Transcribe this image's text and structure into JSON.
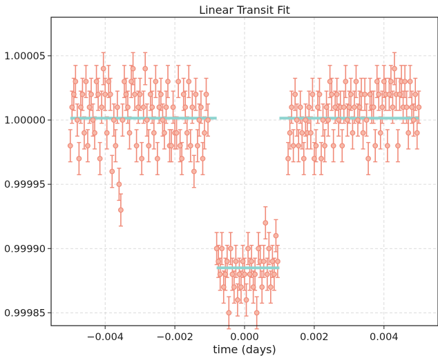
{
  "chart_data": {
    "type": "scatter",
    "title": "Linear Transit Fit",
    "xlabel": "time (days)",
    "ylabel": "",
    "xlim": [
      -0.00555,
      0.00555
    ],
    "ylim": [
      0.99984,
      1.00008
    ],
    "x_ticks": [
      -0.004,
      -0.002,
      0.0,
      0.002,
      0.004
    ],
    "x_tick_labels": [
      "−0.004",
      "−0.002",
      "0.000",
      "0.002",
      "0.004"
    ],
    "y_ticks": [
      0.99985,
      0.9999,
      0.99995,
      1.0,
      1.00005
    ],
    "y_tick_labels": [
      "0.99985",
      "0.99990",
      "0.99995",
      "1.00000",
      "1.00005"
    ],
    "grid": true,
    "colors": {
      "data": "#f08a78",
      "marker_fill": "#f7b8a8",
      "model": "#8ed4cf"
    },
    "series": [
      {
        "kind": "errorbar",
        "yerr": 1.25e-05,
        "points": [
          [
            -0.005,
            0.99998
          ],
          [
            -0.00495,
            1.00001
          ],
          [
            -0.0049,
            1.00002
          ],
          [
            -0.00485,
            1.00003
          ],
          [
            -0.0048,
            1.0
          ],
          [
            -0.00475,
            0.99997
          ],
          [
            -0.0047,
            1.00001
          ],
          [
            -0.00465,
            1.00002
          ],
          [
            -0.0046,
            0.99999
          ],
          [
            -0.00455,
            1.00003
          ],
          [
            -0.0045,
            0.99998
          ],
          [
            -0.00445,
            1.00001
          ],
          [
            -0.0044,
            1.00002
          ],
          [
            -0.00435,
            1.0
          ],
          [
            -0.0043,
            0.99999
          ],
          [
            -0.00425,
            1.00003
          ],
          [
            -0.0042,
            1.00002
          ],
          [
            -0.00415,
            0.99997
          ],
          [
            -0.0041,
            1.00001
          ],
          [
            -0.00405,
            1.00004
          ],
          [
            -0.004,
            1.00002
          ],
          [
            -0.00395,
            0.99999
          ],
          [
            -0.0039,
            1.00003
          ],
          [
            -0.00385,
            1.00002
          ],
          [
            -0.0038,
            0.99996
          ],
          [
            -0.00375,
            1.0
          ],
          [
            -0.0037,
            0.99998
          ],
          [
            -0.00365,
            1.00001
          ],
          [
            -0.0036,
            0.99995
          ],
          [
            -0.00355,
            0.99993
          ],
          [
            -0.0035,
            1.0
          ],
          [
            -0.00345,
            1.00003
          ],
          [
            -0.0034,
            1.00002
          ],
          [
            -0.00335,
            1.00001
          ],
          [
            -0.0033,
            0.99999
          ],
          [
            -0.00325,
            1.00003
          ],
          [
            -0.0032,
            1.00004
          ],
          [
            -0.00315,
            1.00002
          ],
          [
            -0.0031,
            0.99998
          ],
          [
            -0.00305,
            1.00001
          ],
          [
            -0.003,
            1.00002
          ],
          [
            -0.00295,
            0.99997
          ],
          [
            -0.0029,
            1.00001
          ],
          [
            -0.00285,
            1.00004
          ],
          [
            -0.0028,
            1.0
          ],
          [
            -0.00275,
            0.99998
          ],
          [
            -0.0027,
            1.00002
          ],
          [
            -0.00265,
            1.00001
          ],
          [
            -0.0026,
            0.99999
          ],
          [
            -0.00255,
            1.00003
          ],
          [
            -0.0025,
            0.99997
          ],
          [
            -0.00245,
            1.00001
          ],
          [
            -0.0024,
            1.00002
          ],
          [
            -0.00235,
            1.0
          ],
          [
            -0.0023,
            0.99999
          ],
          [
            -0.00225,
            1.00001
          ],
          [
            -0.0022,
            1.00003
          ],
          [
            -0.00215,
            0.99998
          ],
          [
            -0.0021,
            0.99998
          ],
          [
            -0.00205,
            1.00001
          ],
          [
            -0.002,
            0.99999
          ],
          [
            -0.00195,
            0.99999
          ],
          [
            -0.0019,
            1.00003
          ],
          [
            -0.00185,
            0.99998
          ],
          [
            -0.0018,
            0.99997
          ],
          [
            -0.00175,
            1.00002
          ],
          [
            -0.0017,
            1.00001
          ],
          [
            -0.00165,
            0.99999
          ],
          [
            -0.0016,
            1.00003
          ],
          [
            -0.00155,
            0.99998
          ],
          [
            -0.0015,
            1.00001
          ],
          [
            -0.00145,
            0.99996
          ],
          [
            -0.0014,
            1.00002
          ],
          [
            -0.00135,
            0.99998
          ],
          [
            -0.0013,
            1.0
          ],
          [
            -0.00125,
            1.00001
          ],
          [
            -0.0012,
            0.99997
          ],
          [
            -0.00115,
            0.99999
          ],
          [
            -0.0011,
            1.00002
          ],
          [
            -0.00105,
            1.0
          ],
          [
            -0.0008,
            0.9999
          ],
          [
            -0.00075,
            0.99989
          ],
          [
            -0.0007,
            0.99988
          ],
          [
            -0.00065,
            0.9999
          ],
          [
            -0.0006,
            0.99987
          ],
          [
            -0.00055,
            0.99988
          ],
          [
            -0.0005,
            0.99989
          ],
          [
            -0.00045,
            0.99985
          ],
          [
            -0.0004,
            0.9999
          ],
          [
            -0.00035,
            0.99988
          ],
          [
            -0.0003,
            0.99987
          ],
          [
            -0.00025,
            0.99989
          ],
          [
            -0.0002,
            0.99986
          ],
          [
            -0.00015,
            0.99988
          ],
          [
            -0.0001,
            0.99987
          ],
          [
            -5e-05,
            0.99989
          ],
          [
            0.0,
            0.99988
          ],
          [
            5e-05,
            0.99986
          ],
          [
            0.0001,
            0.9999
          ],
          [
            0.00015,
            0.99988
          ],
          [
            0.0002,
            0.99989
          ],
          [
            0.00025,
            0.99987
          ],
          [
            0.0003,
            0.99988
          ],
          [
            0.00035,
            0.99985
          ],
          [
            0.0004,
            0.9999
          ],
          [
            0.00045,
            0.99989
          ],
          [
            0.0005,
            0.99987
          ],
          [
            0.00055,
            0.99989
          ],
          [
            0.0006,
            0.99992
          ],
          [
            0.00065,
            0.99988
          ],
          [
            0.0007,
            0.9999
          ],
          [
            0.00075,
            0.99987
          ],
          [
            0.0008,
            0.99989
          ],
          [
            0.00085,
            0.99988
          ],
          [
            0.0009,
            0.99991
          ],
          [
            0.00095,
            0.99989
          ],
          [
            0.00125,
            0.99997
          ],
          [
            0.0013,
            0.99999
          ],
          [
            0.00135,
            1.00001
          ],
          [
            0.0014,
            0.99998
          ],
          [
            0.00145,
            1.00002
          ],
          [
            0.0015,
            1.0
          ],
          [
            0.00155,
            0.99998
          ],
          [
            0.0016,
            1.00001
          ],
          [
            0.00165,
            0.99999
          ],
          [
            0.0017,
            0.99997
          ],
          [
            0.00175,
            1.0
          ],
          [
            0.0018,
            0.99999
          ],
          [
            0.00185,
            1.00001
          ],
          [
            0.0019,
            0.99999
          ],
          [
            0.00195,
            1.00002
          ],
          [
            0.002,
            0.99997
          ],
          [
            0.00205,
            0.99998
          ],
          [
            0.0021,
            1.00001
          ],
          [
            0.00215,
            1.00002
          ],
          [
            0.0022,
            0.99997
          ],
          [
            0.00225,
            1.0
          ],
          [
            0.0023,
            0.99998
          ],
          [
            0.00235,
            1.00001
          ],
          [
            0.0024,
            1.0
          ],
          [
            0.00245,
            1.00003
          ],
          [
            0.0025,
            1.00002
          ],
          [
            0.00255,
            0.99998
          ],
          [
            0.0026,
            1.00001
          ],
          [
            0.00265,
            1.00002
          ],
          [
            0.0027,
            1.0
          ],
          [
            0.00275,
            1.00001
          ],
          [
            0.0028,
            0.99998
          ],
          [
            0.00285,
            1.00001
          ],
          [
            0.0029,
            1.00003
          ],
          [
            0.00295,
            1.0
          ],
          [
            0.003,
            1.00001
          ],
          [
            0.00305,
            1.00002
          ],
          [
            0.0031,
            0.99999
          ],
          [
            0.00315,
            1.00001
          ],
          [
            0.0032,
            1.00003
          ],
          [
            0.00325,
            1.0
          ],
          [
            0.0033,
            1.00001
          ],
          [
            0.00335,
            1.00002
          ],
          [
            0.0034,
            0.99999
          ],
          [
            0.00345,
            1.00002
          ],
          [
            0.0035,
            1.0
          ],
          [
            0.00355,
            0.99997
          ],
          [
            0.0036,
            1.00002
          ],
          [
            0.00365,
            1.00001
          ],
          [
            0.0037,
            1.00001
          ],
          [
            0.00375,
            0.99998
          ],
          [
            0.0038,
            1.00003
          ],
          [
            0.00385,
            1.00002
          ],
          [
            0.0039,
            0.99999
          ],
          [
            0.00395,
            1.00001
          ],
          [
            0.004,
            1.00003
          ],
          [
            0.00405,
            1.00002
          ],
          [
            0.0041,
            0.99998
          ],
          [
            0.00415,
            1.00002
          ],
          [
            0.0042,
            1.00003
          ],
          [
            0.00425,
            1.00001
          ],
          [
            0.0043,
            1.00004
          ],
          [
            0.00435,
            1.00002
          ],
          [
            0.0044,
            0.99998
          ],
          [
            0.00445,
            1.00002
          ],
          [
            0.0045,
            1.00003
          ],
          [
            0.00455,
            1.00001
          ],
          [
            0.0046,
            1.00003
          ],
          [
            0.00465,
            1.00001
          ],
          [
            0.0047,
            0.99999
          ],
          [
            0.00475,
            1.00003
          ],
          [
            0.0048,
            1.00001
          ],
          [
            0.00485,
            1.0
          ],
          [
            0.0049,
            1.00002
          ],
          [
            0.00495,
            0.99999
          ],
          [
            0.005,
            1.00001
          ]
        ]
      },
      {
        "kind": "model-line",
        "segments": [
          [
            [
              -0.005,
              1.0000015
            ],
            [
              -0.0008,
              1.0000015
            ]
          ],
          [
            [
              -0.0008,
              0.999885
            ],
            [
              0.001,
              0.999885
            ]
          ],
          [
            [
              0.001,
              1.0000015
            ],
            [
              0.005,
              1.0000015
            ]
          ]
        ]
      }
    ]
  }
}
